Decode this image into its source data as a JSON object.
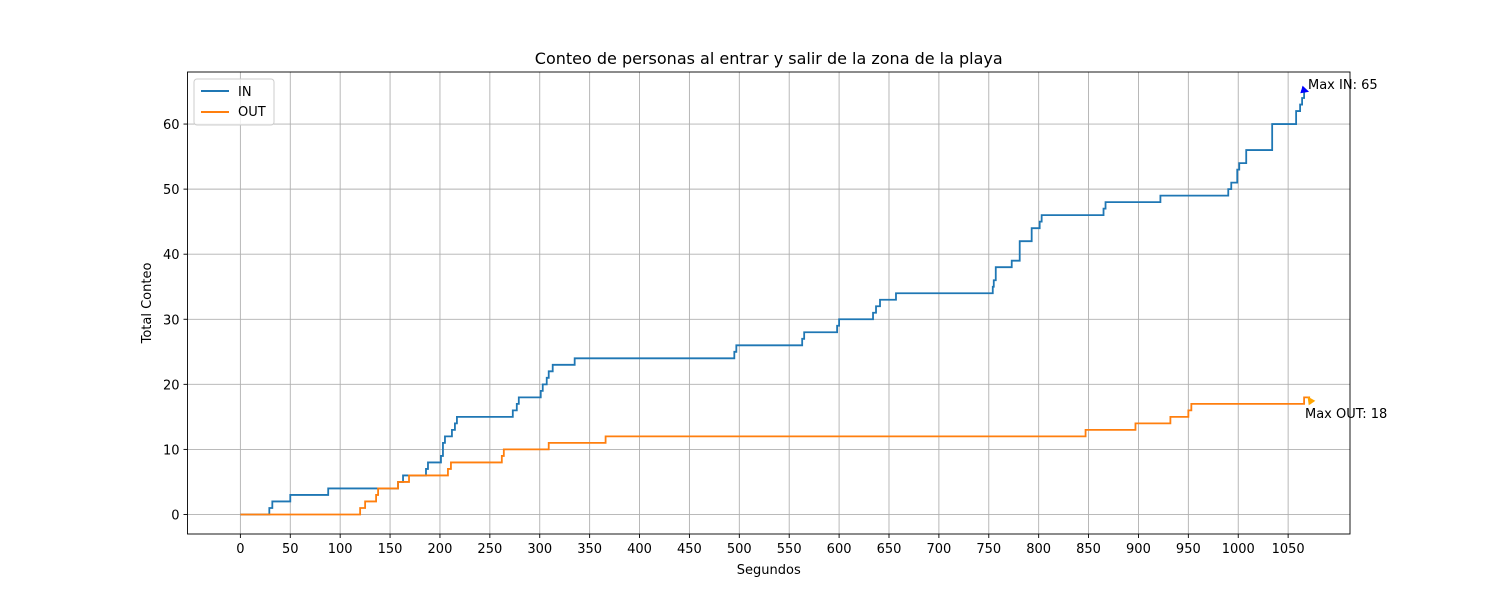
{
  "chart_data": {
    "type": "line",
    "title": "Conteo de personas al entrar y salir de la zona de la playa",
    "xlabel": "Segundos",
    "ylabel": "Total Conteo",
    "xlim": [
      -53,
      1112
    ],
    "ylim": [
      -3,
      68
    ],
    "x_ticks": [
      0,
      50,
      100,
      150,
      200,
      250,
      300,
      350,
      400,
      450,
      500,
      550,
      600,
      650,
      700,
      750,
      800,
      850,
      900,
      950,
      1000,
      1050
    ],
    "y_ticks": [
      0,
      10,
      20,
      30,
      40,
      50,
      60
    ],
    "grid": true,
    "legend": "upper-left",
    "series": [
      {
        "name": "IN",
        "color": "#1f77b4",
        "step_points": [
          [
            0,
            0
          ],
          [
            29,
            1
          ],
          [
            32,
            2
          ],
          [
            50,
            3
          ],
          [
            88,
            4
          ],
          [
            158,
            5
          ],
          [
            163,
            6
          ],
          [
            186,
            7
          ],
          [
            188,
            8
          ],
          [
            201,
            9
          ],
          [
            203,
            11
          ],
          [
            205,
            12
          ],
          [
            212,
            13
          ],
          [
            215,
            14
          ],
          [
            217,
            15
          ],
          [
            273,
            16
          ],
          [
            277,
            17
          ],
          [
            279,
            18
          ],
          [
            301,
            19
          ],
          [
            303,
            20
          ],
          [
            307,
            21
          ],
          [
            309,
            22
          ],
          [
            313,
            23
          ],
          [
            335,
            24
          ],
          [
            495,
            25
          ],
          [
            497,
            26
          ],
          [
            563,
            27
          ],
          [
            565,
            28
          ],
          [
            598,
            29
          ],
          [
            600,
            30
          ],
          [
            634,
            31
          ],
          [
            637,
            32
          ],
          [
            641,
            33
          ],
          [
            657,
            34
          ],
          [
            754,
            35
          ],
          [
            755,
            36
          ],
          [
            757,
            38
          ],
          [
            773,
            39
          ],
          [
            781,
            42
          ],
          [
            793,
            44
          ],
          [
            801,
            45
          ],
          [
            803,
            46
          ],
          [
            865,
            47
          ],
          [
            867,
            48
          ],
          [
            922,
            49
          ],
          [
            990,
            50
          ],
          [
            993,
            51
          ],
          [
            999,
            53
          ],
          [
            1001,
            54
          ],
          [
            1008,
            56
          ],
          [
            1034,
            60
          ],
          [
            1058,
            62
          ],
          [
            1062,
            63
          ],
          [
            1064,
            64
          ],
          [
            1066,
            65
          ],
          [
            1068,
            65
          ]
        ]
      },
      {
        "name": "OUT",
        "color": "#ff7f0e",
        "step_points": [
          [
            0,
            0
          ],
          [
            120,
            1
          ],
          [
            125,
            2
          ],
          [
            136,
            3
          ],
          [
            138,
            4
          ],
          [
            158,
            5
          ],
          [
            169,
            6
          ],
          [
            208,
            7
          ],
          [
            211,
            8
          ],
          [
            262,
            9
          ],
          [
            264,
            10
          ],
          [
            309,
            11
          ],
          [
            366,
            12
          ],
          [
            847,
            13
          ],
          [
            897,
            14
          ],
          [
            932,
            15
          ],
          [
            950,
            16
          ],
          [
            953,
            17
          ],
          [
            1066,
            18
          ],
          [
            1072,
            18
          ]
        ]
      }
    ],
    "annotations": [
      {
        "text": "Max IN: 65",
        "x": 1066,
        "y": 65,
        "color": "#0000ff"
      },
      {
        "text": "Max OUT: 18",
        "x": 1066,
        "y": 18,
        "color": "#ffa500"
      }
    ]
  }
}
